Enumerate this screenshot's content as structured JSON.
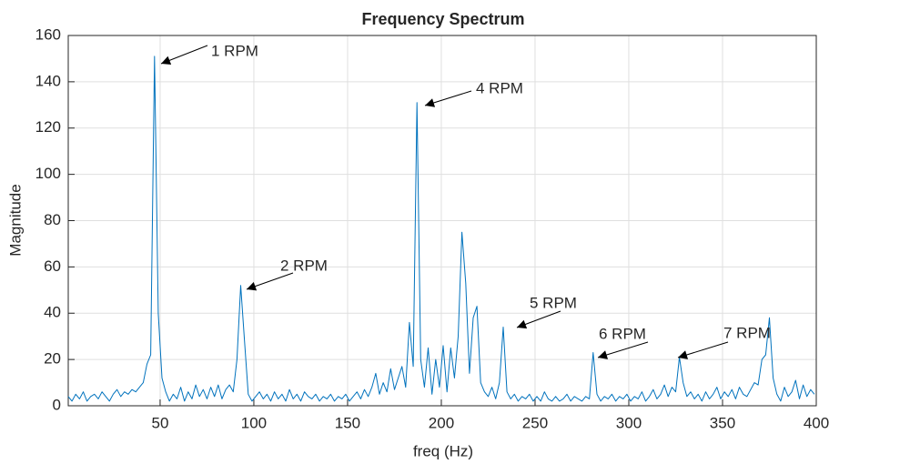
{
  "chart_data": {
    "type": "line",
    "title": "Frequency Spectrum",
    "x_label": "freq (Hz)",
    "y_label": "Magnitude",
    "x": [
      1,
      3,
      5,
      7,
      9,
      11,
      13,
      15,
      17,
      19,
      21,
      23,
      25,
      27,
      29,
      31,
      33,
      35,
      37,
      39,
      41,
      43,
      45,
      47,
      49,
      51,
      53,
      55,
      57,
      59,
      61,
      63,
      65,
      67,
      69,
      71,
      73,
      75,
      77,
      79,
      81,
      83,
      85,
      87,
      89,
      91,
      93,
      95,
      97,
      99,
      101,
      103,
      105,
      107,
      109,
      111,
      113,
      115,
      117,
      119,
      121,
      123,
      125,
      127,
      129,
      131,
      133,
      135,
      137,
      139,
      141,
      143,
      145,
      147,
      149,
      151,
      153,
      155,
      157,
      159,
      161,
      163,
      165,
      167,
      169,
      171,
      173,
      175,
      177,
      179,
      181,
      183,
      185,
      187,
      189,
      191,
      193,
      195,
      197,
      199,
      201,
      203,
      205,
      207,
      209,
      211,
      213,
      215,
      217,
      219,
      221,
      223,
      225,
      227,
      229,
      231,
      233,
      235,
      237,
      239,
      241,
      243,
      245,
      247,
      249,
      251,
      253,
      255,
      257,
      259,
      261,
      263,
      265,
      267,
      269,
      271,
      273,
      275,
      277,
      279,
      281,
      283,
      285,
      287,
      289,
      291,
      293,
      295,
      297,
      299,
      301,
      303,
      305,
      307,
      309,
      311,
      313,
      315,
      317,
      319,
      321,
      323,
      325,
      327,
      329,
      331,
      333,
      335,
      337,
      339,
      341,
      343,
      345,
      347,
      349,
      351,
      353,
      355,
      357,
      359,
      361,
      363,
      365,
      367,
      369,
      371,
      373,
      375,
      377,
      379,
      381,
      383,
      385,
      387,
      389,
      391,
      393,
      395,
      397,
      399
    ],
    "series": [
      {
        "name": "Magnitude",
        "color": "#0072bd",
        "values": [
          4,
          2,
          5,
          3,
          6,
          2,
          4,
          5,
          3,
          6,
          4,
          2,
          5,
          7,
          4,
          6,
          5,
          7,
          6,
          8,
          10,
          18,
          22,
          151,
          40,
          12,
          6,
          2,
          5,
          3,
          8,
          2,
          6,
          3,
          9,
          4,
          7,
          3,
          8,
          4,
          9,
          3,
          7,
          9,
          6,
          20,
          52,
          28,
          5,
          2,
          4,
          6,
          3,
          5,
          2,
          6,
          3,
          5,
          2,
          7,
          3,
          5,
          2,
          6,
          4,
          3,
          5,
          2,
          4,
          3,
          5,
          2,
          4,
          3,
          5,
          2,
          4,
          6,
          3,
          7,
          4,
          8,
          14,
          5,
          10,
          6,
          16,
          7,
          12,
          17,
          8,
          36,
          17,
          131,
          20,
          8,
          25,
          5,
          20,
          8,
          26,
          6,
          25,
          12,
          30,
          75,
          53,
          14,
          38,
          43,
          10,
          6,
          4,
          8,
          3,
          10,
          34,
          6,
          3,
          5,
          2,
          4,
          3,
          5,
          2,
          4,
          2,
          6,
          3,
          2,
          4,
          2,
          3,
          5,
          2,
          4,
          3,
          2,
          4,
          3,
          23,
          5,
          2,
          4,
          3,
          5,
          2,
          4,
          3,
          5,
          2,
          4,
          3,
          6,
          2,
          4,
          7,
          3,
          5,
          9,
          4,
          8,
          6,
          21,
          10,
          4,
          6,
          3,
          5,
          2,
          6,
          3,
          5,
          8,
          3,
          6,
          4,
          7,
          3,
          8,
          5,
          4,
          7,
          10,
          9,
          20,
          22,
          38,
          12,
          5,
          2,
          8,
          4,
          6,
          11,
          3,
          9,
          4,
          7,
          5
        ]
      }
    ],
    "xlim": [
      1,
      400
    ],
    "ylim": [
      0,
      160
    ],
    "xticks": [
      50,
      100,
      150,
      200,
      250,
      300,
      350,
      400
    ],
    "yticks": [
      0,
      20,
      40,
      60,
      80,
      100,
      120,
      140,
      160
    ],
    "grid": true,
    "annotations": [
      "1 RPM",
      "2 RPM",
      "4 RPM",
      "5 RPM",
      "6 RPM",
      "7 RPM"
    ]
  }
}
